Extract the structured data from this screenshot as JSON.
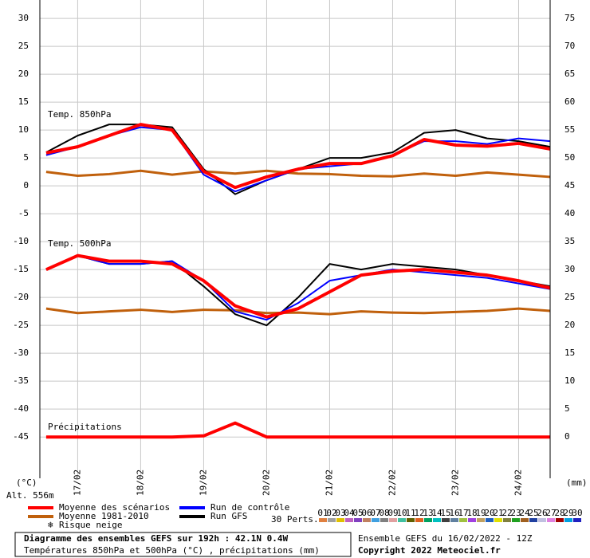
{
  "chart_data": {
    "type": "line",
    "labels": {
      "t850": "Temp. 850hPa",
      "t500": "Temp. 500hPa",
      "precip": "Précipitations",
      "yunit": "(°C)",
      "y2unit": "(mm)",
      "alt": "Alt. 556m",
      "snow": "Risque neige",
      "perts": "30 Perts."
    },
    "footer": {
      "title": "Diagramme des ensembles GEFS sur 192h : 42.1N 0.4W",
      "subtitle": "Températures 850hPa et 500hPa (°C) , précipitations (mm)",
      "run": "Ensemble GEFS du 16/02/2022 - 12Z",
      "copyright": "Copyright 2022 Meteociel.fr"
    },
    "x": [
      0.5,
      1,
      1.5,
      2,
      2.5,
      3,
      3.5,
      4,
      4.5,
      5,
      5.5,
      6,
      6.5,
      7,
      7.5,
      8,
      8.5
    ],
    "xlim": [
      0.4,
      8.5
    ],
    "xticks": [
      {
        "value": 1,
        "label": "17/02"
      },
      {
        "value": 2,
        "label": "18/02"
      },
      {
        "value": 3,
        "label": "19/02"
      },
      {
        "value": 4,
        "label": "20/02"
      },
      {
        "value": 5,
        "label": "21/02"
      },
      {
        "value": 6,
        "label": "22/02"
      },
      {
        "value": 7,
        "label": "23/02"
      },
      {
        "value": 8,
        "label": "24/02"
      }
    ],
    "ylim": [
      -52.4,
      33.3
    ],
    "yticks": [
      30,
      25,
      20,
      15,
      10,
      5,
      0,
      -5,
      -10,
      -15,
      -20,
      -25,
      -30,
      -35,
      -40,
      -45
    ],
    "y2lim": [
      -7.4,
      78.3
    ],
    "y2ticks": [
      75,
      70,
      65,
      60,
      55,
      50,
      45,
      40,
      35,
      30,
      25,
      20,
      15,
      10,
      5,
      0
    ],
    "grid": true,
    "series": [
      {
        "name": "Moyenne 1981-2010",
        "color": "#c0600c",
        "width": 3,
        "t850": [
          2.5,
          1.8,
          2.1,
          2.7,
          2.0,
          2.6,
          2.2,
          2.7,
          2.2,
          2.1,
          1.8,
          1.7,
          2.2,
          1.8,
          2.4,
          2.0,
          1.6
        ],
        "t500": [
          -22,
          -22.8,
          -22.5,
          -22.2,
          -22.6,
          -22.2,
          -22.3,
          -22.8,
          -22.7,
          -23,
          -22.5,
          -22.7,
          -22.8,
          -22.6,
          -22.4,
          -22,
          -22.4
        ]
      },
      {
        "name": "Run GFS",
        "color": "#000000",
        "width": 2,
        "t850": [
          6,
          9,
          11,
          11,
          10.5,
          3,
          -1.5,
          1,
          3,
          5,
          5,
          6,
          9.5,
          10,
          8.5,
          8,
          7
        ],
        "t500": [
          -15,
          -12.5,
          -14,
          -14,
          -13.5,
          -18,
          -23,
          -25,
          -20,
          -14,
          -15,
          -14,
          -14.5,
          -15,
          -16,
          -17,
          -18
        ]
      },
      {
        "name": "Run de contrôle",
        "color": "#0000ff",
        "width": 2,
        "t850": [
          5.5,
          7,
          9,
          10.5,
          10,
          2,
          -1,
          1,
          3,
          3.5,
          4,
          5.5,
          8,
          8,
          7.5,
          8.5,
          8
        ],
        "t500": [
          -15,
          -12.5,
          -14,
          -14,
          -13.5,
          -17,
          -22.5,
          -24,
          -21,
          -17,
          -16,
          -15,
          -15.5,
          -16,
          -16.5,
          -17.5,
          -18.5
        ]
      },
      {
        "name": "Moyenne des scénarios",
        "color": "#ff0000",
        "width": 4,
        "t850": [
          5.9,
          7,
          9,
          11,
          10,
          2.6,
          -0.3,
          1.6,
          3,
          4,
          4,
          5.4,
          8.3,
          7.3,
          7.1,
          7.6,
          6.6
        ],
        "t500": [
          -15,
          -12.5,
          -13.5,
          -13.5,
          -14,
          -17,
          -21.5,
          -23.5,
          -22,
          -19,
          -16,
          -15.3,
          -15,
          -15.5,
          -16,
          -17,
          -18.3
        ],
        "precip": [
          0,
          0,
          0,
          0,
          0,
          0.2,
          2.5,
          0,
          0,
          0,
          0,
          0,
          0,
          0,
          0,
          0,
          0
        ]
      }
    ],
    "legend_order": [
      3,
      0,
      2,
      1
    ],
    "perts": [
      {
        "label": "01",
        "color": "#e08040"
      },
      {
        "label": "02",
        "color": "#a0a0a0"
      },
      {
        "label": "03",
        "color": "#e0c000"
      },
      {
        "label": "04",
        "color": "#c060c0"
      },
      {
        "label": "05",
        "color": "#8040c0"
      },
      {
        "label": "06",
        "color": "#c08060"
      },
      {
        "label": "07",
        "color": "#40a0e0"
      },
      {
        "label": "08",
        "color": "#808080"
      },
      {
        "label": "09",
        "color": "#e0a0a0"
      },
      {
        "label": "10",
        "color": "#40c0a0"
      },
      {
        "label": "11",
        "color": "#606000"
      },
      {
        "label": "12",
        "color": "#e06020"
      },
      {
        "label": "13",
        "color": "#00a060"
      },
      {
        "label": "14",
        "color": "#00c0c0"
      },
      {
        "label": "15",
        "color": "#404040"
      },
      {
        "label": "16",
        "color": "#6080a0"
      },
      {
        "label": "17",
        "color": "#a0c040"
      },
      {
        "label": "18",
        "color": "#a040e0"
      },
      {
        "label": "19",
        "color": "#c0a060"
      },
      {
        "label": "20",
        "color": "#2060c0"
      },
      {
        "label": "21",
        "color": "#e0e000"
      },
      {
        "label": "22",
        "color": "#808040"
      },
      {
        "label": "23",
        "color": "#20a020"
      },
      {
        "label": "24",
        "color": "#a06020"
      },
      {
        "label": "25",
        "color": "#2040a0"
      },
      {
        "label": "26",
        "color": "#c0c0e0"
      },
      {
        "label": "27",
        "color": "#e080e0"
      },
      {
        "label": "28",
        "color": "#a00000"
      },
      {
        "label": "29",
        "color": "#00a0e0"
      },
      {
        "label": "30",
        "color": "#2020c0"
      }
    ]
  }
}
